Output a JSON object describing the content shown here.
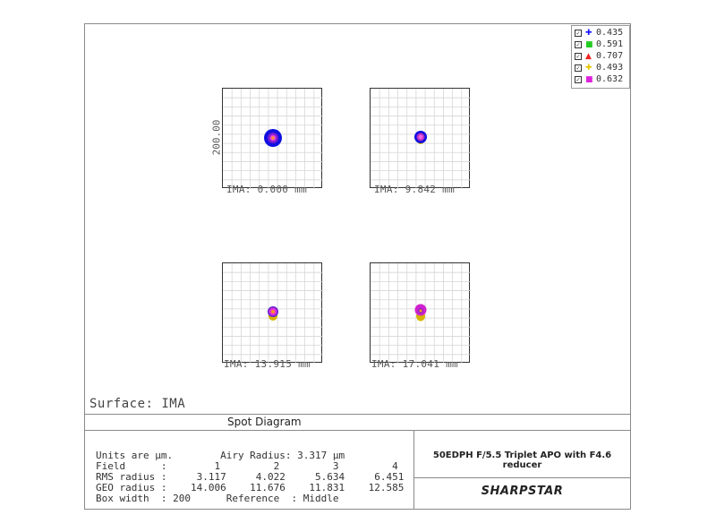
{
  "legend": [
    {
      "symbol": "✚",
      "color": "#1a1aff",
      "value": "0.435"
    },
    {
      "symbol": "■",
      "color": "#22cc22",
      "value": "0.591"
    },
    {
      "symbol": "▲",
      "color": "#ee2222",
      "value": "0.707"
    },
    {
      "symbol": "✚",
      "color": "#e8c400",
      "value": "0.493"
    },
    {
      "symbol": "■",
      "color": "#dd22dd",
      "value": "0.632"
    }
  ],
  "spots": [
    {
      "label": "IMA: 0.000 mm"
    },
    {
      "label": "IMA: 9.842 mm"
    },
    {
      "label": "IMA: 13.915 mm"
    },
    {
      "label": "IMA: 17.041 mm"
    }
  ],
  "scale_label": "200.00",
  "surface": "Surface: IMA",
  "title": "Spot Diagram",
  "info": {
    "line1": "Units are µm.        Airy Radius: 3.317 µm",
    "line2": "Field      :        1         2         3         4",
    "line3": "RMS radius :     3.117     4.022     5.634     6.451",
    "line4": "GEO radius :    14.006    11.676    11.831    12.585",
    "line5": "Box width  : 200      Reference  : Middle"
  },
  "lens_title": "50EDPH F/5.5 Triplet APO with F4.6 reducer",
  "logo": "SHARPSTAR"
}
